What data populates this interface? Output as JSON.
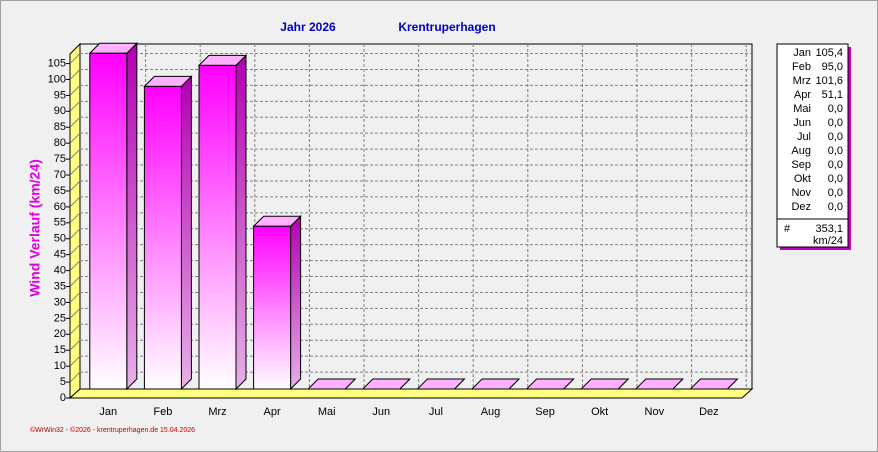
{
  "chart_data": {
    "type": "bar3d",
    "title": "Jahr  2026",
    "subtitle": "Krentruperhagen",
    "y_label": "Wind Verlauf  (km/24)",
    "footer": "©WrWin32 - ©2026 - krentruperhagen.de  15.04.2026",
    "categories": [
      "Jan",
      "Feb",
      "Mrz",
      "Apr",
      "Mai",
      "Jun",
      "Jul",
      "Aug",
      "Sep",
      "Okt",
      "Nov",
      "Dez"
    ],
    "values": [
      105.4,
      95.0,
      101.6,
      51.1,
      0,
      0,
      0,
      0,
      0,
      0,
      0,
      0
    ],
    "value_labels": [
      "105,4",
      "95,0",
      "101,6",
      "51,1",
      "0,0",
      "0,0",
      "0,0",
      "0,0",
      "0,0",
      "0,0",
      "0,0",
      "0,0"
    ],
    "color": "#ff00ff",
    "ylim": [
      0,
      108
    ],
    "yticks": [
      0,
      5,
      10,
      15,
      20,
      25,
      30,
      35,
      40,
      45,
      50,
      55,
      60,
      65,
      70,
      75,
      80,
      85,
      90,
      95,
      100,
      105
    ],
    "grid": true,
    "legend": {
      "total_symbol": "#",
      "total": "353,1",
      "unit": "km/24"
    }
  }
}
